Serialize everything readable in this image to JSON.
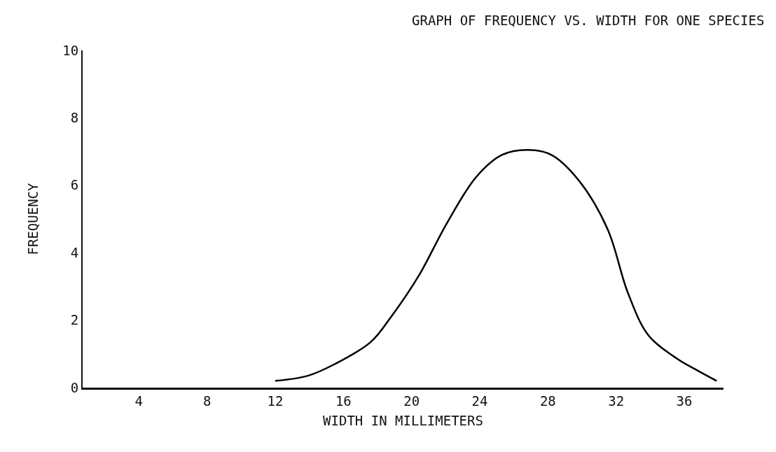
{
  "chart_data": {
    "type": "line",
    "title": "GRAPH OF FREQUENCY VS. WIDTH FOR ONE SPECIES",
    "xlabel": "WIDTH IN MILLIMETERS",
    "ylabel": "FREQUENCY",
    "x": [
      12,
      13.9,
      15.5,
      17.6,
      18.8,
      20.4,
      22.1,
      23.8,
      25.3,
      26.8,
      28.2,
      29.8,
      31.5,
      32.7,
      33.9,
      35.6,
      36.8,
      37.9
    ],
    "values": [
      0.2,
      0.35,
      0.7,
      1.35,
      2.1,
      3.3,
      4.9,
      6.25,
      6.9,
      7.05,
      6.9,
      6.15,
      4.7,
      2.8,
      1.55,
      0.85,
      0.5,
      0.2
    ],
    "color": "#000000",
    "xlim": [
      0.7,
      38.3
    ],
    "xticks": [
      4,
      8,
      12,
      16,
      20,
      24,
      28,
      32,
      36
    ],
    "ylim": [
      0,
      10
    ],
    "yticks": [
      0,
      2,
      4,
      6,
      8,
      10
    ],
    "grid": false,
    "legend": false,
    "marker": "none",
    "line_style": "solid"
  }
}
